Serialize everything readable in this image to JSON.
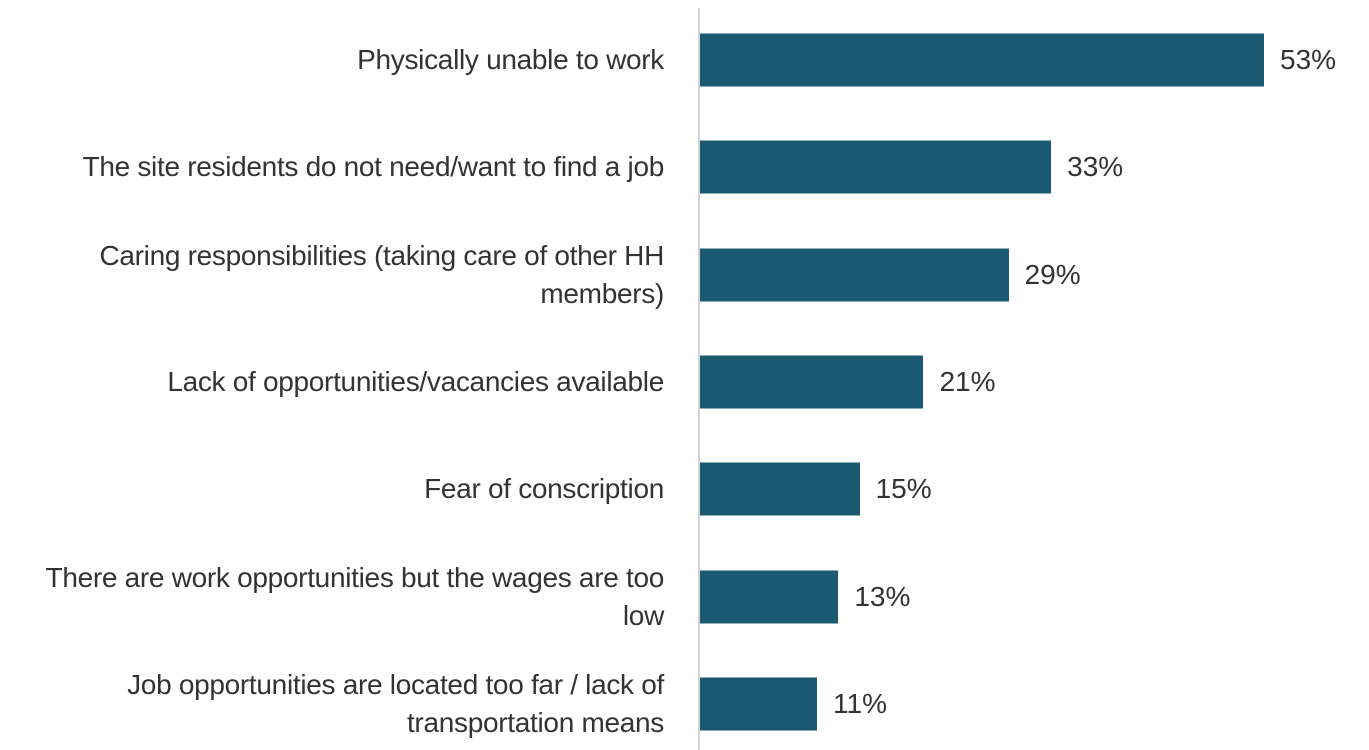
{
  "chart_data": {
    "type": "barh",
    "categories": [
      "Physically unable to work",
      "The site residents do not need/want to find a job",
      "Caring responsibilities (taking care of other HH members)",
      "Lack of opportunities/vacancies available",
      "Fear of conscription",
      "There are work opportunities but the wages are too low",
      "Job opportunities are located too far / lack of transportation means"
    ],
    "values": [
      53,
      33,
      29,
      21,
      15,
      13,
      11
    ],
    "value_labels": [
      "53%",
      "33%",
      "29%",
      "21%",
      "15%",
      "13%",
      "11%"
    ],
    "color": "#1b5a70"
  }
}
